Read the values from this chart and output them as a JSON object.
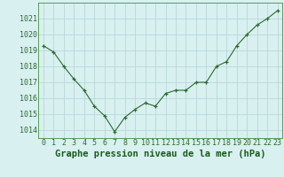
{
  "x": [
    0,
    1,
    2,
    3,
    4,
    5,
    6,
    7,
    8,
    9,
    10,
    11,
    12,
    13,
    14,
    15,
    16,
    17,
    18,
    19,
    20,
    21,
    22,
    23
  ],
  "y": [
    1019.3,
    1018.9,
    1018.0,
    1017.2,
    1016.5,
    1015.5,
    1014.9,
    1013.9,
    1014.8,
    1015.3,
    1015.7,
    1015.5,
    1016.3,
    1016.5,
    1016.5,
    1017.0,
    1017.0,
    1018.0,
    1018.3,
    1019.3,
    1020.0,
    1020.6,
    1021.0,
    1021.5
  ],
  "line_color": "#2d6a2d",
  "marker_color": "#2d6a2d",
  "bg_color": "#d8f0f0",
  "grid_color": "#b8d8d8",
  "title": "Graphe pression niveau de la mer (hPa)",
  "xlabel_color": "#1a5c1a",
  "ylim_min": 1013.5,
  "ylim_max": 1022.0,
  "xlim_min": -0.5,
  "xlim_max": 23.5,
  "yticks": [
    1014,
    1015,
    1016,
    1017,
    1018,
    1019,
    1020,
    1021
  ],
  "xticks": [
    0,
    1,
    2,
    3,
    4,
    5,
    6,
    7,
    8,
    9,
    10,
    11,
    12,
    13,
    14,
    15,
    16,
    17,
    18,
    19,
    20,
    21,
    22,
    23
  ],
  "title_fontsize": 7.5,
  "tick_fontsize": 6.0,
  "tick_color": "#2d6a2d",
  "spine_color": "#5a9a5a"
}
